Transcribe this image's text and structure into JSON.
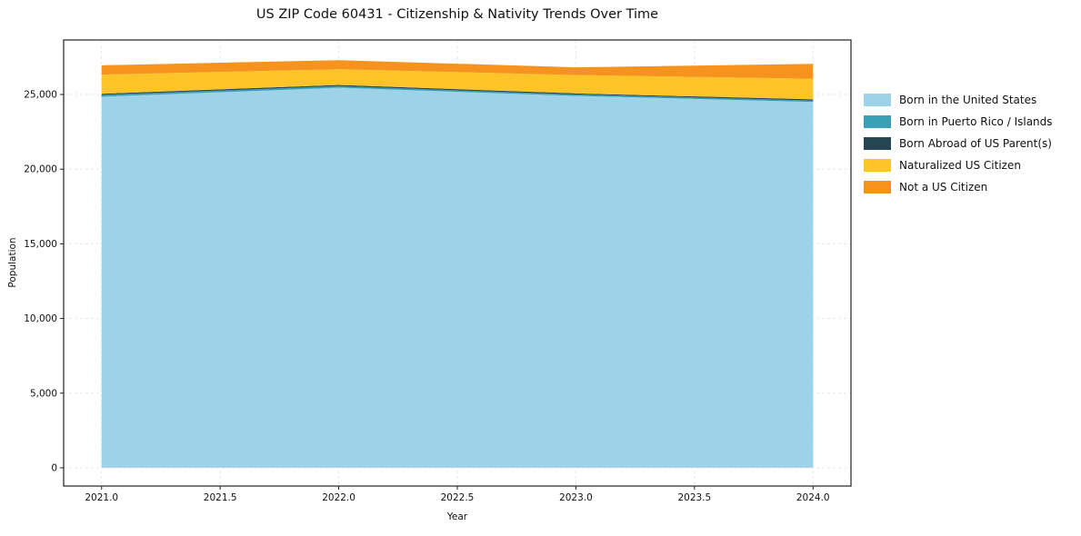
{
  "title": "US ZIP Code 60431 - Citizenship & Nativity Trends Over Time",
  "chart_data": {
    "type": "area",
    "stacked": true,
    "title": "US ZIP Code 60431 - Citizenship & Nativity Trends Over Time",
    "xlabel": "Year",
    "ylabel": "Population",
    "x": [
      2021,
      2022,
      2023,
      2024
    ],
    "series": [
      {
        "name": "Born in the United States",
        "color": "#9ED2E8",
        "values": [
          24850,
          25450,
          24900,
          24500
        ]
      },
      {
        "name": "Born in Puerto Rico / Islands",
        "color": "#39A0B5",
        "values": [
          120,
          110,
          100,
          100
        ]
      },
      {
        "name": "Born Abroad of US Parent(s)",
        "color": "#264653",
        "values": [
          80,
          80,
          70,
          70
        ]
      },
      {
        "name": "Naturalized US Citizen",
        "color": "#FDC429",
        "values": [
          1280,
          1050,
          1230,
          1380
        ]
      },
      {
        "name": "Not a US Citizen",
        "color": "#F6921E",
        "values": [
          620,
          610,
          520,
          1000
        ]
      }
    ],
    "xticks": [
      "2021.0",
      "2021.5",
      "2022.0",
      "2022.5",
      "2023.0",
      "2023.5",
      "2024.0"
    ],
    "xtick_values": [
      2021,
      2021.5,
      2022,
      2022.5,
      2023,
      2023.5,
      2024
    ],
    "yticks": [
      "0",
      "5,000",
      "10,000",
      "15,000",
      "20,000",
      "25,000"
    ],
    "ytick_values": [
      0,
      5000,
      10000,
      15000,
      20000,
      25000
    ],
    "xlim": [
      2020.84,
      2024.16
    ],
    "ylim": [
      -1220,
      28650
    ],
    "grid": true,
    "grid_color": "#e7e7e7",
    "axis_color": "#222222",
    "legend_position": "right"
  }
}
